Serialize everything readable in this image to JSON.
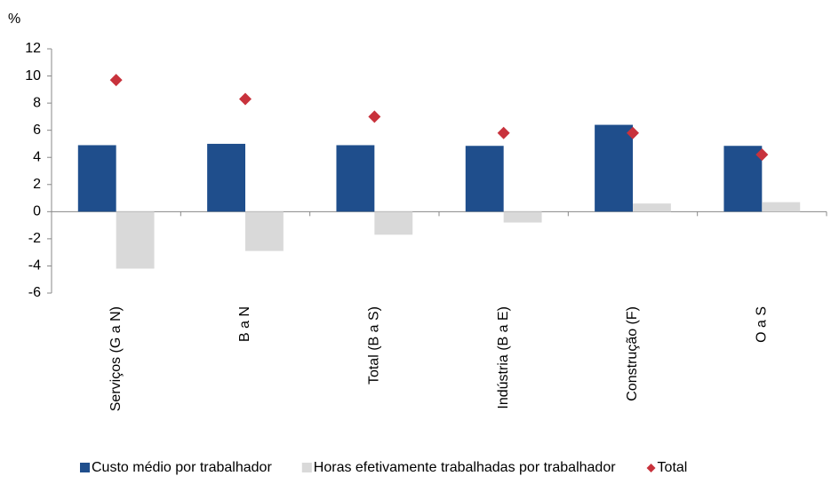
{
  "chart_data": {
    "type": "bar",
    "y_unit": "%",
    "categories": [
      "Serviços (G a N)",
      "B a N",
      "Total (B a S)",
      "Indústria (B a E)",
      "Construção (F)",
      "O a S"
    ],
    "series": [
      {
        "name": "Custo médio por trabalhador",
        "color": "#1f4e8c",
        "values": [
          4.9,
          5.0,
          4.9,
          4.85,
          6.4,
          4.85
        ]
      },
      {
        "name": "Horas efetivamente trabalhadas por trabalhador",
        "color": "#d9d9d9",
        "values": [
          -4.2,
          -2.9,
          -1.7,
          -0.8,
          0.6,
          0.7
        ]
      },
      {
        "name": "Total",
        "color": "#c8323c",
        "marker": "diamond",
        "values": [
          9.7,
          8.3,
          7.0,
          5.8,
          5.8,
          4.2
        ]
      }
    ],
    "ylim": [
      -6,
      12
    ],
    "yticks": [
      -6,
      -4,
      -2,
      0,
      2,
      4,
      6,
      8,
      10,
      12
    ],
    "legend": "bottom"
  }
}
